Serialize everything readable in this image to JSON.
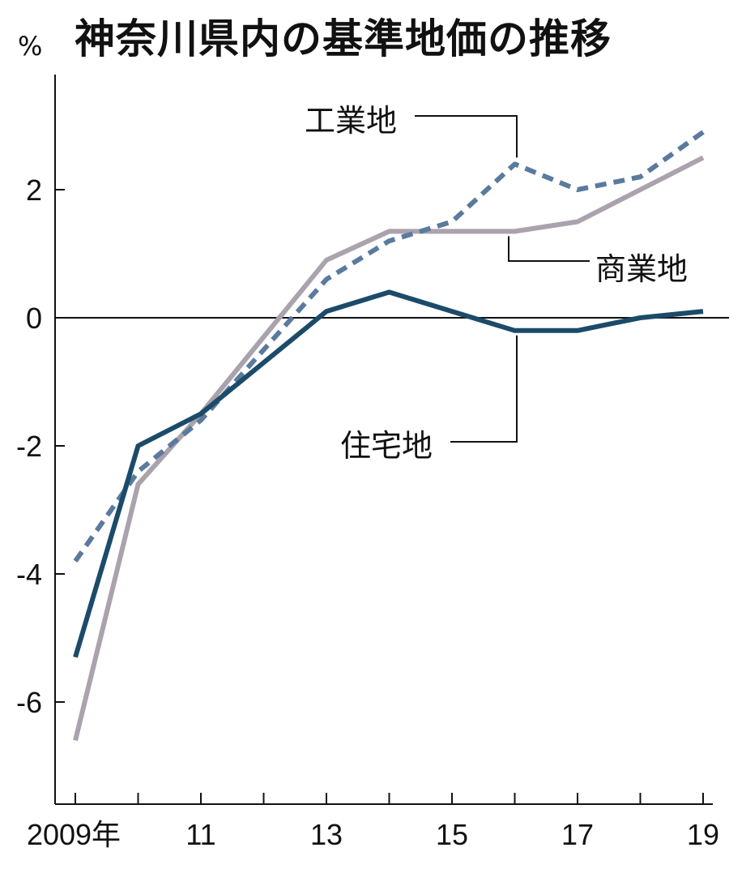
{
  "title": "神奈川県内の基準地価の推移",
  "chart_data": {
    "type": "line",
    "title": "神奈川県内の基準地価の推移",
    "unit": "%",
    "x": [
      2009,
      2010,
      2011,
      2012,
      2013,
      2014,
      2015,
      2016,
      2017,
      2018,
      2019
    ],
    "x_tick_values": [
      2009,
      2011,
      2013,
      2015,
      2017,
      2019
    ],
    "x_tick_labels": [
      "2009年",
      "11",
      "13",
      "15",
      "17",
      "19"
    ],
    "y_ticks": [
      2,
      0,
      -2,
      -4,
      -6
    ],
    "y_tick_labels": [
      "2",
      "0",
      "-2",
      "-4",
      "-6"
    ],
    "xlim": [
      2009,
      2019
    ],
    "ylim": [
      -7.5,
      3.8
    ],
    "zero_line": true,
    "grid": false,
    "series": [
      {
        "name": "工業地",
        "color": "#5a7a9e",
        "dash": true,
        "values": [
          -3.8,
          -2.4,
          -1.6,
          -0.5,
          0.6,
          1.2,
          1.5,
          2.4,
          2.0,
          2.2,
          2.9
        ]
      },
      {
        "name": "商業地",
        "color": "#aaa2ac",
        "dash": false,
        "values": [
          -6.6,
          -2.6,
          -1.5,
          -0.3,
          0.9,
          1.35,
          1.35,
          1.35,
          1.5,
          2.0,
          2.5
        ]
      },
      {
        "name": "住宅地",
        "color": "#1c4b6a",
        "dash": false,
        "values": [
          -5.3,
          -2.0,
          -1.5,
          -0.7,
          0.1,
          0.4,
          0.1,
          -0.2,
          -0.2,
          0.0,
          0.1
        ]
      }
    ]
  }
}
